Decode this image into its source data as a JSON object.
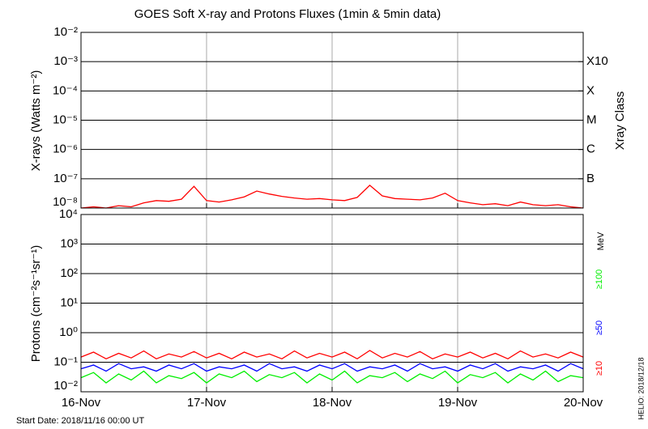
{
  "chart_data": [
    {
      "type": "line",
      "title": "GOES Soft X-ray and Protons Fluxes   (1min & 5min data)",
      "y_label": "X-rays (Watts m⁻²)",
      "y2_label": "Xray Class",
      "log_scale": true,
      "grid": true,
      "xlim": [
        0,
        4
      ],
      "xticks": [
        1,
        2,
        3
      ],
      "ylim": [
        1e-08,
        0.01
      ],
      "yticks": [
        {
          "value": 0.01,
          "label": "10⁻²"
        },
        {
          "value": 0.001,
          "label": "10⁻³"
        },
        {
          "value": 0.0001,
          "label": "10⁻⁴"
        },
        {
          "value": 1e-05,
          "label": "10⁻⁵"
        },
        {
          "value": 1e-06,
          "label": "10⁻⁶"
        },
        {
          "value": 1e-07,
          "label": "10⁻⁷"
        },
        {
          "value": 1e-08,
          "label": "10⁻⁸"
        }
      ],
      "y2lim": [
        1e-08,
        0.01
      ],
      "y2ticks": [
        {
          "value": 0.001,
          "label": "X10"
        },
        {
          "value": 0.0001,
          "label": "X"
        },
        {
          "value": 1e-05,
          "label": "M"
        },
        {
          "value": 1e-06,
          "label": "C"
        },
        {
          "value": 1e-07,
          "label": "B"
        }
      ],
      "x": [
        0,
        0.1,
        0.2,
        0.3,
        0.4,
        0.5,
        0.6,
        0.7,
        0.8,
        0.9,
        1,
        1.1,
        1.2,
        1.3,
        1.4,
        1.5,
        1.6,
        1.7,
        1.8,
        1.9,
        2,
        2.1,
        2.2,
        2.3,
        2.4,
        2.5,
        2.6,
        2.7,
        2.8,
        2.9,
        3,
        3.1,
        3.2,
        3.3,
        3.4,
        3.5,
        3.6,
        3.7,
        3.8,
        3.9,
        4
      ],
      "series": [
        {
          "color": "#ff0000",
          "values": [
            1e-08,
            1.1e-08,
            1e-08,
            1.2e-08,
            1.1e-08,
            1.5e-08,
            1.8e-08,
            1.7e-08,
            2e-08,
            5.5e-08,
            1.8e-08,
            1.6e-08,
            1.9e-08,
            2.4e-08,
            3.8e-08,
            3e-08,
            2.5e-08,
            2.2e-08,
            2e-08,
            2.1e-08,
            1.9e-08,
            1.8e-08,
            2.3e-08,
            6e-08,
            2.6e-08,
            2.1e-08,
            2e-08,
            1.9e-08,
            2.2e-08,
            3.2e-08,
            1.8e-08,
            1.5e-08,
            1.3e-08,
            1.4e-08,
            1.2e-08,
            1.6e-08,
            1.3e-08,
            1.2e-08,
            1.3e-08,
            1.1e-08,
            1e-08
          ]
        }
      ]
    },
    {
      "type": "line",
      "y_label": "Protons (cm⁻²s⁻¹sr⁻¹)",
      "log_scale": true,
      "grid": true,
      "threshold": 10,
      "xlim": [
        0,
        4
      ],
      "xticks": [
        {
          "value": 0,
          "label": "16-Nov"
        },
        {
          "value": 1,
          "label": "17-Nov"
        },
        {
          "value": 2,
          "label": "18-Nov"
        },
        {
          "value": 3,
          "label": "19-Nov"
        },
        {
          "value": 4,
          "label": "20-Nov"
        }
      ],
      "ylim": [
        0.01,
        10000
      ],
      "yticks": [
        {
          "value": 10000,
          "label": "10⁴"
        },
        {
          "value": 1000,
          "label": "10³"
        },
        {
          "value": 100,
          "label": "10²"
        },
        {
          "value": 10,
          "label": "10¹"
        },
        {
          "value": 1,
          "label": "10⁰"
        },
        {
          "value": 0.1,
          "label": "10⁻¹"
        },
        {
          "value": 0.01,
          "label": "10⁻²"
        }
      ],
      "unit": "MeV",
      "energy_labels": [
        {
          "text": "≥100",
          "color": "#00ee00"
        },
        {
          "text": "≥50",
          "color": "#0000ff"
        },
        {
          "text": "≥10",
          "color": "#ff0000"
        }
      ],
      "x": [
        0,
        0.1,
        0.2,
        0.3,
        0.4,
        0.5,
        0.6,
        0.7,
        0.8,
        0.9,
        1,
        1.1,
        1.2,
        1.3,
        1.4,
        1.5,
        1.6,
        1.7,
        1.8,
        1.9,
        2,
        2.1,
        2.2,
        2.3,
        2.4,
        2.5,
        2.6,
        2.7,
        2.8,
        2.9,
        3,
        3.1,
        3.2,
        3.3,
        3.4,
        3.5,
        3.6,
        3.7,
        3.8,
        3.9,
        4
      ],
      "series": [
        {
          "color": "#ff0000",
          "values": [
            0.15,
            0.22,
            0.13,
            0.2,
            0.14,
            0.24,
            0.13,
            0.19,
            0.15,
            0.23,
            0.14,
            0.2,
            0.13,
            0.22,
            0.15,
            0.19,
            0.13,
            0.24,
            0.14,
            0.2,
            0.15,
            0.22,
            0.13,
            0.25,
            0.14,
            0.2,
            0.15,
            0.23,
            0.13,
            0.19,
            0.15,
            0.22,
            0.14,
            0.2,
            0.13,
            0.24,
            0.15,
            0.19,
            0.14,
            0.22,
            0.15
          ]
        },
        {
          "color": "#0000ff",
          "values": [
            0.06,
            0.08,
            0.05,
            0.09,
            0.06,
            0.07,
            0.05,
            0.08,
            0.06,
            0.09,
            0.05,
            0.07,
            0.06,
            0.08,
            0.05,
            0.09,
            0.06,
            0.07,
            0.05,
            0.08,
            0.06,
            0.09,
            0.05,
            0.07,
            0.06,
            0.08,
            0.05,
            0.09,
            0.06,
            0.07,
            0.05,
            0.08,
            0.06,
            0.09,
            0.05,
            0.07,
            0.06,
            0.08,
            0.05,
            0.09,
            0.06
          ]
        },
        {
          "color": "#00ee00",
          "values": [
            0.03,
            0.045,
            0.02,
            0.04,
            0.025,
            0.05,
            0.02,
            0.035,
            0.028,
            0.045,
            0.02,
            0.04,
            0.03,
            0.05,
            0.022,
            0.038,
            0.03,
            0.045,
            0.02,
            0.04,
            0.025,
            0.05,
            0.02,
            0.035,
            0.03,
            0.045,
            0.022,
            0.04,
            0.028,
            0.05,
            0.02,
            0.038,
            0.03,
            0.045,
            0.02,
            0.04,
            0.025,
            0.05,
            0.022,
            0.035,
            0.03
          ]
        }
      ]
    }
  ],
  "footer": "Start Date: 2018/11/16 00:00 UT",
  "stamp": "HELIO: 2018/12/18"
}
